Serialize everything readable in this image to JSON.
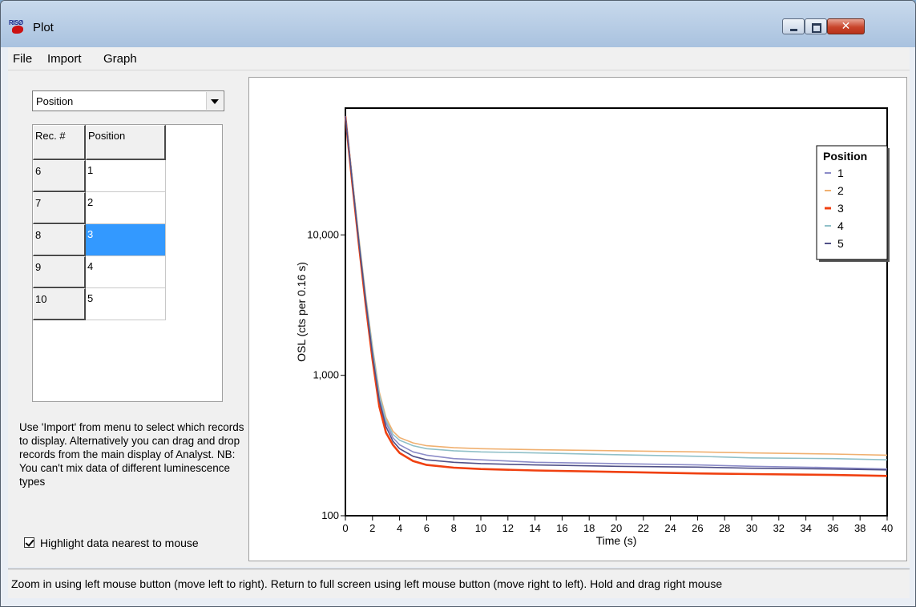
{
  "window": {
    "title": "Plot"
  },
  "menu": {
    "items": [
      "File",
      "Import",
      "Graph"
    ]
  },
  "selector": {
    "value": "Position"
  },
  "grid": {
    "headers": [
      "Rec. #",
      "Position"
    ],
    "rows": [
      {
        "rec": "6",
        "position": "1"
      },
      {
        "rec": "7",
        "position": "2"
      },
      {
        "rec": "8",
        "position": "3",
        "selected": true
      },
      {
        "rec": "9",
        "position": "4"
      },
      {
        "rec": "10",
        "position": "5"
      }
    ]
  },
  "info_text": "Use 'Import' from menu to select which records to display. Alternatively you can drag and drop records from the main display of Analyst. NB: You can't mix data of different luminescence types",
  "highlight_checkbox": {
    "label": "Highlight data nearest to mouse",
    "checked": true
  },
  "status_bar": {
    "text": "Zoom in using left mouse button (move left to right). Return to full screen using left mouse button (move right to left). Hold and drag right mouse"
  },
  "chart_data": {
    "type": "line",
    "xlabel": "Time (s)",
    "ylabel": "OSL (cts per 0.16 s)",
    "xlim": [
      0,
      40
    ],
    "ylim": [
      100,
      80000
    ],
    "yscale": "log",
    "xticks": [
      0,
      2,
      4,
      6,
      8,
      10,
      12,
      14,
      16,
      18,
      20,
      22,
      24,
      26,
      28,
      30,
      32,
      34,
      36,
      38,
      40
    ],
    "yticks": [
      100,
      1000,
      10000
    ],
    "ytick_labels": [
      "100",
      "1,000",
      "10,000"
    ],
    "legend": {
      "title": "Position",
      "placement": "top-right"
    },
    "series": [
      {
        "name": "1",
        "color": "#8c8cc8",
        "x": [
          0,
          0.5,
          1,
          1.5,
          2,
          2.5,
          3,
          3.5,
          4,
          5,
          6,
          8,
          10,
          14,
          20,
          26,
          30,
          36,
          40
        ],
        "y": [
          70000,
          25000,
          9000,
          3500,
          1500,
          700,
          460,
          360,
          320,
          285,
          270,
          255,
          250,
          240,
          235,
          230,
          225,
          220,
          215
        ]
      },
      {
        "name": "2",
        "color": "#f0b070",
        "x": [
          0,
          0.5,
          1,
          1.5,
          2,
          2.5,
          3,
          3.5,
          4,
          5,
          6,
          8,
          10,
          14,
          20,
          26,
          30,
          36,
          40
        ],
        "y": [
          70000,
          26000,
          9500,
          3700,
          1600,
          760,
          500,
          400,
          360,
          330,
          315,
          305,
          300,
          295,
          290,
          285,
          280,
          275,
          270
        ]
      },
      {
        "name": "3",
        "color": "#f04010",
        "x": [
          0,
          0.5,
          1,
          1.5,
          2,
          2.5,
          3,
          3.5,
          4,
          5,
          6,
          8,
          10,
          14,
          20,
          26,
          30,
          36,
          40
        ],
        "y": [
          70000,
          24000,
          8500,
          3200,
          1300,
          600,
          390,
          320,
          280,
          245,
          230,
          220,
          215,
          210,
          205,
          200,
          198,
          195,
          192
        ]
      },
      {
        "name": "4",
        "color": "#90c0c8",
        "x": [
          0,
          0.5,
          1,
          1.5,
          2,
          2.5,
          3,
          3.5,
          4,
          5,
          6,
          8,
          10,
          14,
          20,
          26,
          30,
          36,
          40
        ],
        "y": [
          70000,
          25500,
          9200,
          3600,
          1550,
          730,
          480,
          380,
          345,
          315,
          300,
          290,
          285,
          280,
          272,
          265,
          258,
          255,
          250
        ]
      },
      {
        "name": "5",
        "color": "#505088",
        "x": [
          0,
          0.5,
          1,
          1.5,
          2,
          2.5,
          3,
          3.5,
          4,
          5,
          6,
          8,
          10,
          14,
          20,
          26,
          30,
          36,
          40
        ],
        "y": [
          70000,
          24500,
          8800,
          3400,
          1400,
          660,
          430,
          340,
          300,
          265,
          250,
          240,
          235,
          230,
          225,
          222,
          218,
          215,
          212
        ]
      }
    ]
  }
}
